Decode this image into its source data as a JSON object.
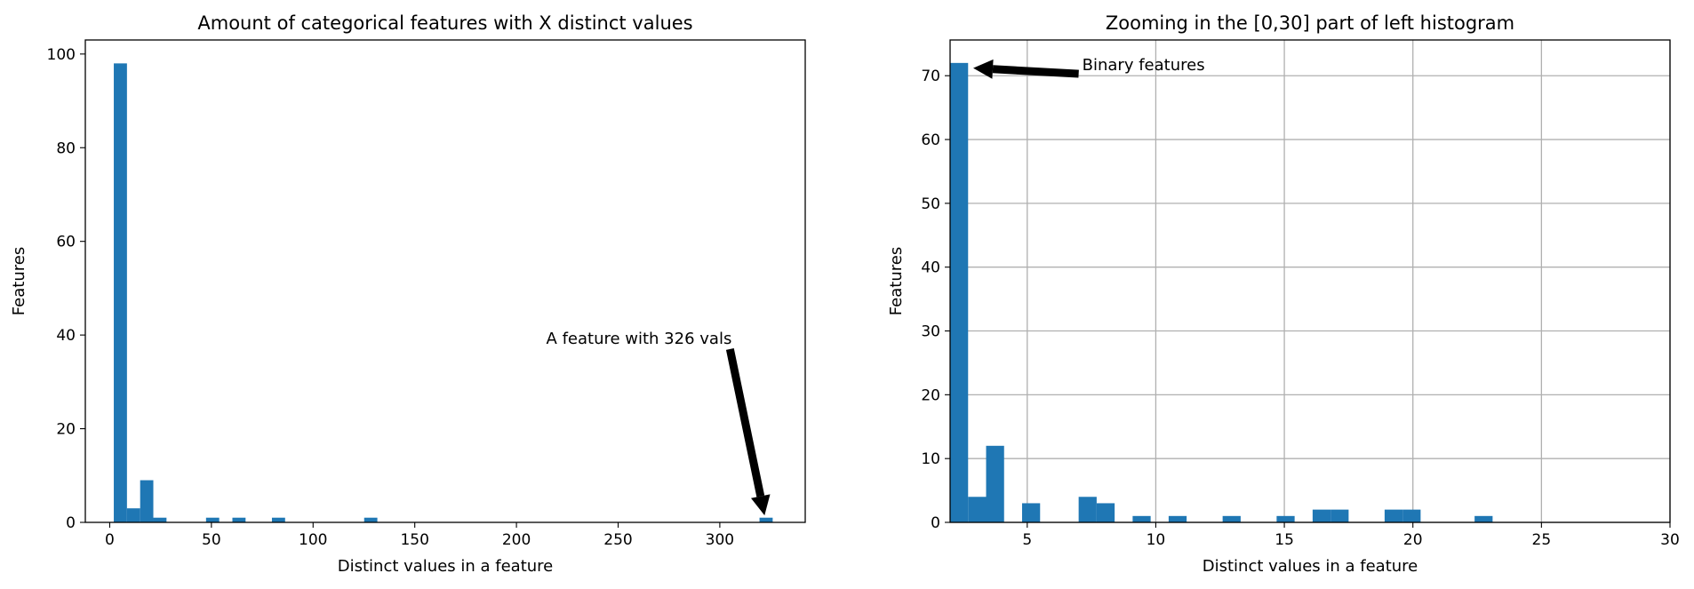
{
  "colors": {
    "bar": "#1f77b4",
    "grid": "#b0b0b0",
    "frame": "#000000"
  },
  "chart_data": [
    {
      "type": "bar",
      "title": "Amount of categorical features with X distinct values",
      "xlabel": "Distinct values in a feature",
      "ylabel": "Features",
      "xlim": [
        -12,
        342
      ],
      "ylim": [
        0,
        103
      ],
      "xticks": [
        0,
        50,
        100,
        150,
        200,
        250,
        300
      ],
      "yticks": [
        0,
        20,
        40,
        60,
        80,
        100
      ],
      "grid": false,
      "bin_width": 6.48,
      "bins": [
        {
          "x0": 2,
          "x1": 8.48,
          "value": 98
        },
        {
          "x0": 8.48,
          "x1": 14.96,
          "value": 3
        },
        {
          "x0": 14.96,
          "x1": 21.44,
          "value": 9
        },
        {
          "x0": 21.44,
          "x1": 27.92,
          "value": 1
        },
        {
          "x0": 47.36,
          "x1": 53.84,
          "value": 1
        },
        {
          "x0": 60.32,
          "x1": 66.8,
          "value": 1
        },
        {
          "x0": 79.76,
          "x1": 86.24,
          "value": 1
        },
        {
          "x0": 125.12,
          "x1": 131.6,
          "value": 1
        },
        {
          "x0": 319.52,
          "x1": 326,
          "value": 1
        }
      ],
      "annotation": {
        "text": "A feature with 326 vals",
        "xy": [
          322,
          1.5
        ],
        "xytext": [
          305,
          37
        ]
      }
    },
    {
      "type": "bar",
      "title": "Zooming in the [0,30] part of left histogram",
      "xlabel": "Distinct values in a feature",
      "ylabel": "Features",
      "xlim": [
        2,
        30
      ],
      "ylim": [
        0,
        75.6
      ],
      "xticks": [
        5,
        10,
        15,
        20,
        25,
        30
      ],
      "yticks": [
        0,
        10,
        20,
        30,
        40,
        50,
        60,
        70
      ],
      "grid": true,
      "bins": [
        {
          "x0": 2,
          "x1": 2.7,
          "value": 72
        },
        {
          "x0": 2.7,
          "x1": 3.4,
          "value": 4
        },
        {
          "x0": 3.4,
          "x1": 4.1,
          "value": 12
        },
        {
          "x0": 4.8,
          "x1": 5.5,
          "value": 3
        },
        {
          "x0": 7.0,
          "x1": 7.7,
          "value": 4
        },
        {
          "x0": 7.7,
          "x1": 8.4,
          "value": 3
        },
        {
          "x0": 9.1,
          "x1": 9.8,
          "value": 1
        },
        {
          "x0": 10.5,
          "x1": 11.2,
          "value": 1
        },
        {
          "x0": 12.6,
          "x1": 13.3,
          "value": 1
        },
        {
          "x0": 14.7,
          "x1": 15.4,
          "value": 1
        },
        {
          "x0": 16.1,
          "x1": 16.8,
          "value": 2
        },
        {
          "x0": 16.8,
          "x1": 17.5,
          "value": 2
        },
        {
          "x0": 18.9,
          "x1": 19.6,
          "value": 2
        },
        {
          "x0": 19.6,
          "x1": 20.3,
          "value": 2
        },
        {
          "x0": 22.4,
          "x1": 23.1,
          "value": 1
        }
      ],
      "annotation": {
        "text": "Binary features",
        "xy": [
          2.9,
          71.2
        ],
        "xytext": [
          7.0,
          70.3
        ]
      }
    }
  ]
}
